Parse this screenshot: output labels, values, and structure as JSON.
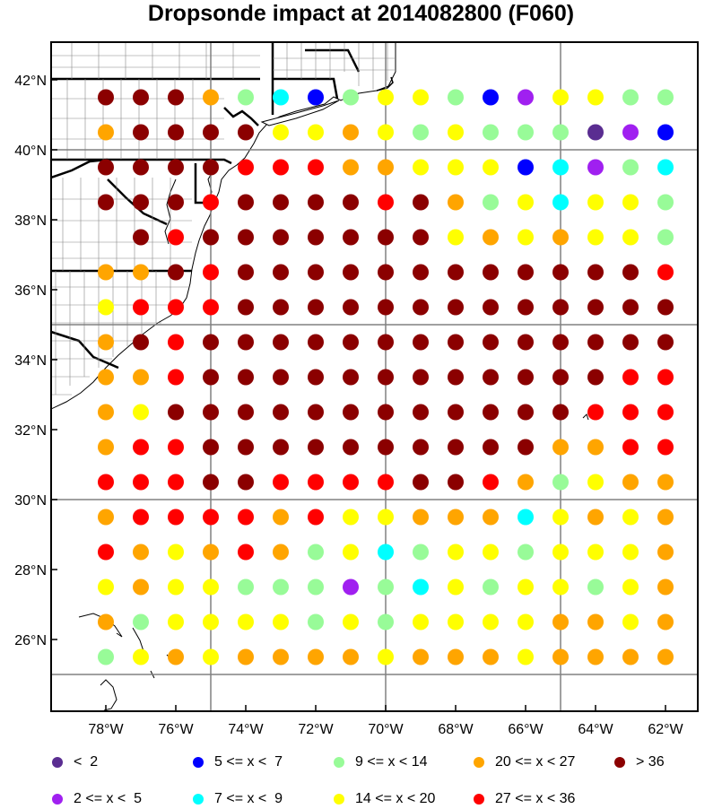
{
  "title": "Dropsonde impact at 2014082800 (F060)",
  "axes": {
    "lon_ticks": [
      "78°W",
      "76°W",
      "74°W",
      "72°W",
      "70°W",
      "68°W",
      "66°W",
      "64°W",
      "62°W"
    ],
    "lat_ticks": [
      "42°N",
      "40°N",
      "38°N",
      "36°N",
      "34°N",
      "32°N",
      "30°N",
      "28°N",
      "26°N"
    ]
  },
  "colors": {
    "c1": "#5a2d91",
    "c2": "#a020f0",
    "c3": "#0000ff",
    "c4": "#00ffff",
    "c5": "#98fb98",
    "c6": "#ffff00",
    "c7": "#ffa500",
    "c8": "#ff0000",
    "c9": "#8b0000",
    "land": "#ffffff",
    "grid": "#808080"
  },
  "legend": [
    {
      "label": "<  2",
      "color_key": "c1"
    },
    {
      "label": "2 <= x <  5",
      "color_key": "c2"
    },
    {
      "label": "5 <= x <  7",
      "color_key": "c3"
    },
    {
      "label": "7 <= x <  9",
      "color_key": "c4"
    },
    {
      "label": "9 <= x < 14",
      "color_key": "c5"
    },
    {
      "label": "14 <= x < 20",
      "color_key": "c6"
    },
    {
      "label": "20 <= x < 27",
      "color_key": "c7"
    },
    {
      "label": "27 <= x < 36",
      "color_key": "c8"
    },
    {
      "label": "> 36",
      "color_key": "c9"
    }
  ],
  "map_data": {
    "lons": [
      -78,
      -77,
      -76,
      -75,
      -74,
      -73,
      -72,
      -71,
      -70,
      -69,
      -68,
      -67,
      -66,
      -65,
      -64,
      -63,
      -62
    ],
    "lats": [
      41.5,
      40.5,
      39.5,
      38.5,
      37.5,
      36.5,
      35.5,
      34.5,
      33.5,
      32.5,
      31.5,
      30.5,
      29.5,
      28.5,
      27.5,
      26.5,
      25.5
    ],
    "classes": [
      [
        9,
        9,
        9,
        7,
        5,
        4,
        3,
        5,
        6,
        6,
        5,
        3,
        2,
        6,
        6,
        5,
        5
      ],
      [
        7,
        9,
        9,
        9,
        9,
        6,
        6,
        7,
        6,
        5,
        6,
        5,
        5,
        5,
        1,
        2,
        3
      ],
      [
        9,
        9,
        9,
        9,
        8,
        8,
        8,
        7,
        7,
        6,
        6,
        6,
        3,
        4,
        2,
        5,
        4
      ],
      [
        9,
        9,
        9,
        8,
        9,
        9,
        9,
        9,
        8,
        9,
        7,
        5,
        6,
        4,
        6,
        6,
        5
      ],
      [
        0,
        9,
        8,
        9,
        9,
        9,
        9,
        9,
        9,
        9,
        6,
        7,
        6,
        7,
        6,
        6,
        5
      ],
      [
        7,
        7,
        9,
        8,
        9,
        9,
        9,
        9,
        9,
        9,
        9,
        9,
        9,
        9,
        9,
        9,
        8
      ],
      [
        6,
        8,
        8,
        8,
        9,
        9,
        9,
        9,
        9,
        9,
        9,
        9,
        9,
        9,
        9,
        9,
        9
      ],
      [
        7,
        9,
        8,
        9,
        9,
        9,
        9,
        9,
        9,
        9,
        9,
        9,
        9,
        9,
        9,
        9,
        9
      ],
      [
        7,
        7,
        8,
        9,
        9,
        9,
        9,
        9,
        9,
        9,
        9,
        9,
        9,
        9,
        9,
        8,
        8
      ],
      [
        7,
        6,
        9,
        9,
        9,
        9,
        9,
        9,
        9,
        9,
        9,
        9,
        9,
        9,
        8,
        8,
        8
      ],
      [
        7,
        8,
        8,
        9,
        9,
        9,
        9,
        9,
        9,
        9,
        9,
        9,
        9,
        7,
        7,
        8,
        8
      ],
      [
        8,
        8,
        8,
        9,
        9,
        8,
        8,
        8,
        8,
        9,
        9,
        8,
        7,
        5,
        6,
        7,
        7
      ],
      [
        7,
        8,
        8,
        8,
        8,
        7,
        8,
        6,
        6,
        7,
        7,
        7,
        4,
        6,
        7,
        6,
        7
      ],
      [
        8,
        7,
        6,
        7,
        8,
        7,
        5,
        6,
        4,
        5,
        6,
        6,
        5,
        6,
        6,
        6,
        7
      ],
      [
        6,
        7,
        6,
        6,
        5,
        5,
        5,
        2,
        5,
        4,
        6,
        5,
        6,
        6,
        5,
        6,
        7
      ],
      [
        7,
        5,
        6,
        6,
        6,
        6,
        5,
        6,
        5,
        6,
        6,
        6,
        6,
        7,
        7,
        6,
        7
      ],
      [
        5,
        6,
        7,
        6,
        7,
        7,
        7,
        7,
        6,
        7,
        7,
        7,
        6,
        7,
        7,
        7,
        7
      ]
    ]
  }
}
